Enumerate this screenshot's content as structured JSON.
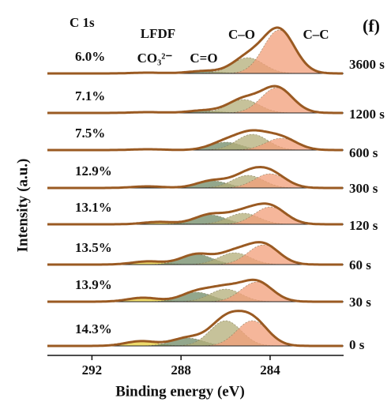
{
  "chart_data": {
    "type": "xps-stack",
    "panel_label": "(f)",
    "region_label": "C 1s",
    "group_label": "LFDF",
    "peak_labels": [
      "CO₃²⁻",
      "C=O",
      "C–O",
      "C–C"
    ],
    "xlabel": "Binding energy (eV)",
    "ylabel": "Intensity (a.u.)",
    "xlim": [
      294,
      280.7
    ],
    "xticks": [
      292,
      288,
      284
    ],
    "component_colors": [
      "#e8cf3a",
      "#6f8a66",
      "#b3ad78",
      "#f29d78"
    ],
    "envelope_color": "#9a5a22",
    "sigma": 0.7,
    "spectra": [
      {
        "time": "3600 s",
        "percent": "6.0%",
        "peaks": [
          {
            "center": 289.5,
            "height": 1
          },
          {
            "center": 287,
            "height": 3
          },
          {
            "center": 285,
            "height": 20
          },
          {
            "center": 283.6,
            "height": 55
          }
        ]
      },
      {
        "time": "1200 s",
        "percent": "7.1%",
        "peaks": [
          {
            "center": 289.5,
            "height": 1
          },
          {
            "center": 287,
            "height": 3
          },
          {
            "center": 285.2,
            "height": 17
          },
          {
            "center": 283.7,
            "height": 32
          }
        ]
      },
      {
        "time": "600 s",
        "percent": "7.5%",
        "peaks": [
          {
            "center": 289.5,
            "height": 1
          },
          {
            "center": 286,
            "height": 10
          },
          {
            "center": 284.8,
            "height": 20
          },
          {
            "center": 283.5,
            "height": 15
          }
        ]
      },
      {
        "time": "300 s",
        "percent": "12.9%",
        "peaks": [
          {
            "center": 289.5,
            "height": 2
          },
          {
            "center": 286.6,
            "height": 9
          },
          {
            "center": 285,
            "height": 16
          },
          {
            "center": 284,
            "height": 18
          }
        ]
      },
      {
        "time": "120 s",
        "percent": "13.1%",
        "peaks": [
          {
            "center": 289,
            "height": 3
          },
          {
            "center": 286.7,
            "height": 12
          },
          {
            "center": 285.2,
            "height": 14
          },
          {
            "center": 284,
            "height": 22
          }
        ]
      },
      {
        "time": "60 s",
        "percent": "13.5%",
        "peaks": [
          {
            "center": 289.5,
            "height": 4
          },
          {
            "center": 287.3,
            "height": 13
          },
          {
            "center": 285.6,
            "height": 15
          },
          {
            "center": 284.3,
            "height": 25
          }
        ]
      },
      {
        "time": "30 s",
        "percent": "13.9%",
        "peaks": [
          {
            "center": 289.7,
            "height": 5
          },
          {
            "center": 287.3,
            "height": 12
          },
          {
            "center": 286,
            "height": 16
          },
          {
            "center": 284.6,
            "height": 25
          }
        ]
      },
      {
        "time": "0 s",
        "percent": "14.3%",
        "peaks": [
          {
            "center": 289.8,
            "height": 6
          },
          {
            "center": 287.7,
            "height": 10
          },
          {
            "center": 286,
            "height": 32
          },
          {
            "center": 284.8,
            "height": 32
          }
        ]
      }
    ]
  }
}
